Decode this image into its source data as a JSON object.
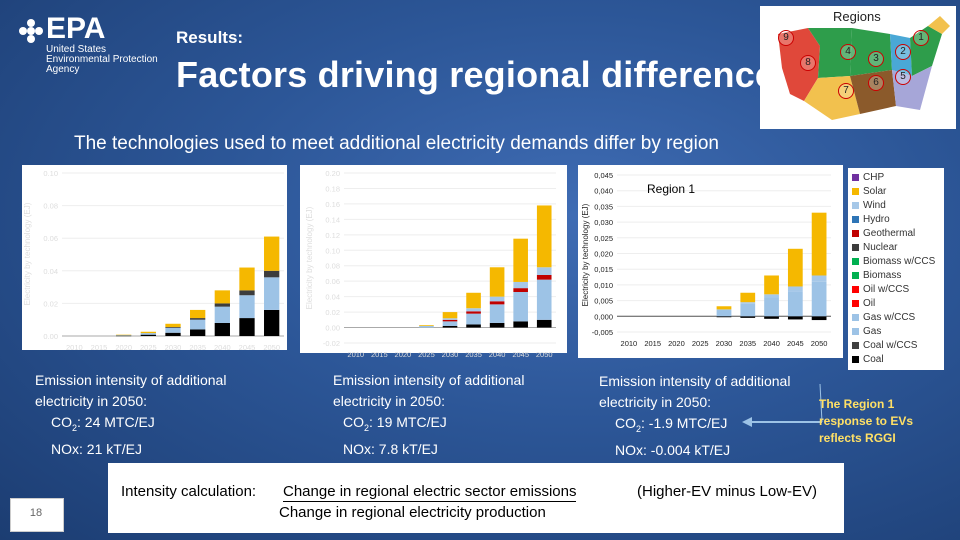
{
  "logo": {
    "mark": "EPA",
    "line1": "United States",
    "line2": "Environmental Protection",
    "line3": "Agency"
  },
  "header": {
    "results_label": "Results:",
    "title": "Factors driving regional differences",
    "subtitle": "The technologies used to meet additional electricity demands differ by region"
  },
  "regions_map": {
    "title": "Regions",
    "labels": [
      "9",
      "8",
      "4",
      "3",
      "2",
      "1",
      "7",
      "6",
      "5"
    ]
  },
  "chart_data": [
    {
      "type": "bar",
      "title": "",
      "ylabel": "Electricity by technology (EJ)",
      "ytick_labels": [
        "0.00",
        "0.02",
        "0.04",
        "0.06",
        "0.08",
        "0.10"
      ],
      "categories": [
        "2010",
        "2015",
        "2020",
        "2025",
        "2030",
        "2035",
        "2040",
        "2045",
        "2050"
      ],
      "x_tick_labels": [
        "2010",
        "2015",
        "2020",
        "2025",
        "2030",
        "2035",
        "2040",
        "2045",
        "2050"
      ],
      "ylim": [
        0,
        0.1
      ],
      "series": [
        {
          "name": "Coal",
          "values": [
            0,
            0,
            0.0002,
            0.0008,
            0.002,
            0.004,
            0.008,
            0.011,
            0.016
          ]
        },
        {
          "name": "Gas",
          "values": [
            0,
            0,
            0.0004,
            0.001,
            0.003,
            0.006,
            0.01,
            0.014,
            0.02
          ]
        },
        {
          "name": "Nuclear",
          "values": [
            0,
            0,
            0,
            0,
            0.0005,
            0.001,
            0.002,
            0.003,
            0.004
          ]
        },
        {
          "name": "Solar",
          "values": [
            0,
            0,
            0.0002,
            0.0008,
            0.002,
            0.005,
            0.008,
            0.014,
            0.021
          ]
        }
      ]
    },
    {
      "type": "bar",
      "title": "",
      "ylabel": "Electricity by technology (EJ)",
      "ytick_labels": [
        "-0.02",
        "0.00",
        "0.02",
        "0.04",
        "0.06",
        "0.08",
        "0.10",
        "0.12",
        "0.14",
        "0.16",
        "0.18",
        "0.20"
      ],
      "categories": [
        "2010",
        "2015",
        "2020",
        "2025",
        "2030",
        "2035",
        "2040",
        "2045",
        "2050"
      ],
      "x_tick_labels": [
        "2010",
        "2015",
        "2020",
        "2025",
        "2030",
        "2035",
        "2040",
        "2045",
        "2050"
      ],
      "ylim": [
        -0.02,
        0.2
      ],
      "series": [
        {
          "name": "Coal",
          "values": [
            0,
            0,
            0,
            0,
            0.002,
            0.004,
            0.006,
            0.008,
            0.01
          ]
        },
        {
          "name": "Gas",
          "values": [
            0,
            0,
            0,
            0.002,
            0.006,
            0.014,
            0.024,
            0.038,
            0.052
          ]
        },
        {
          "name": "Geothermal",
          "values": [
            0,
            0,
            0,
            0,
            0.002,
            0.003,
            0.004,
            0.005,
            0.006
          ]
        },
        {
          "name": "Wind",
          "values": [
            0,
            0,
            0,
            0,
            0.002,
            0.004,
            0.006,
            0.008,
            0.01
          ]
        },
        {
          "name": "Solar",
          "values": [
            0,
            0,
            0,
            0.001,
            0.008,
            0.02,
            0.038,
            0.056,
            0.08
          ]
        }
      ]
    },
    {
      "type": "bar",
      "title": "Region 1",
      "ylabel": "Electricity by technology (EJ)",
      "ytick_labels": [
        "-0,005",
        "0,000",
        "0,005",
        "0,010",
        "0,015",
        "0,020",
        "0,025",
        "0,030",
        "0,035",
        "0,040",
        "0,045"
      ],
      "categories": [
        "2010",
        "2015",
        "2020",
        "2025",
        "2030",
        "2035",
        "2040",
        "2045",
        "2050"
      ],
      "x_tick_labels": [
        "2010",
        "2015",
        "2020",
        "2025",
        "2030",
        "2035",
        "2040",
        "2045",
        "2050"
      ],
      "ylim": [
        -0.005,
        0.045
      ],
      "series": [
        {
          "name": "Coal",
          "values": [
            0,
            0,
            0,
            0,
            -0.0003,
            -0.0005,
            -0.0008,
            -0.001,
            -0.0012
          ]
        },
        {
          "name": "Gas",
          "values": [
            0,
            0,
            0,
            0,
            0.002,
            0.004,
            0.006,
            0.008,
            0.011
          ]
        },
        {
          "name": "Wind",
          "values": [
            0,
            0,
            0,
            0,
            0.0002,
            0.0005,
            0.001,
            0.0015,
            0.002
          ]
        },
        {
          "name": "Solar",
          "values": [
            0,
            0,
            0,
            0,
            0.001,
            0.003,
            0.006,
            0.012,
            0.02
          ]
        }
      ]
    }
  ],
  "legend": {
    "items": [
      {
        "label": "CHP",
        "color": "#7030a0"
      },
      {
        "label": "Solar",
        "color": "#f5b800"
      },
      {
        "label": "Wind",
        "color": "#a6c8e8"
      },
      {
        "label": "Hydro",
        "color": "#2e75b6"
      },
      {
        "label": "Geothermal",
        "color": "#c00000"
      },
      {
        "label": "Nuclear",
        "color": "#3c3c3c"
      },
      {
        "label": "Biomass w/CCS",
        "color": "#00b050"
      },
      {
        "label": "Biomass",
        "color": "#00b050"
      },
      {
        "label": "Oil w/CCS",
        "color": "#ff0000"
      },
      {
        "label": "Oil",
        "color": "#ff0000"
      },
      {
        "label": "Gas w/CCS",
        "color": "#9dc3e6"
      },
      {
        "label": "Gas",
        "color": "#9dc3e6"
      },
      {
        "label": "Coal w/CCS",
        "color": "#404040"
      },
      {
        "label": "Coal",
        "color": "#000000"
      }
    ]
  },
  "emissions": [
    {
      "head1": "Emission intensity of additional",
      "head2": "electricity in 2050:",
      "co2_prefix": "CO",
      "co2_sub": "2",
      "co2_value": ": 24 MTC/EJ",
      "nox": "NOx: 21 kT/EJ"
    },
    {
      "head1": "Emission intensity of additional",
      "head2": "electricity in 2050:",
      "co2_prefix": "CO",
      "co2_sub": "2",
      "co2_value": ": 19 MTC/EJ",
      "nox": "NOx:  7.8 kT/EJ"
    },
    {
      "head1": "Emission intensity of additional",
      "head2": "electricity in 2050:",
      "co2_prefix": "CO",
      "co2_sub": "2",
      "co2_value": ": -1.9 MTC/EJ",
      "nox": "NOx:  -0.004 kT/EJ"
    }
  ],
  "note": {
    "line1": "The Region 1",
    "line2": "response to EVs",
    "line3": "reflects RGGI"
  },
  "formula": {
    "label": "Intensity calculation:",
    "numerator": "Change in regional electric sector emissions",
    "denominator": "Change in regional electricity production",
    "suffix": "(Higher-EV minus Low-EV)"
  },
  "page": {
    "number": "18"
  }
}
